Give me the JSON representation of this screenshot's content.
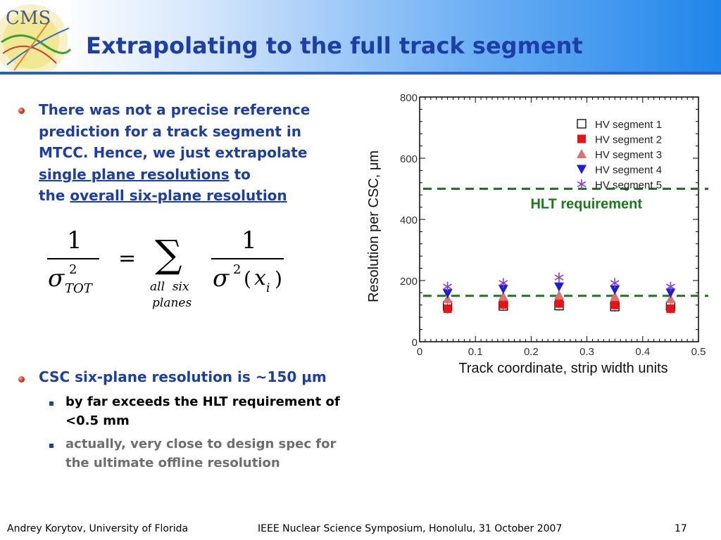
{
  "slide": {
    "title": "Extrapolating to the full track segment",
    "logo_text": "CMS",
    "bullet1": {
      "line1": "There was not a precise reference",
      "line2": "prediction for a track segment in",
      "line3": "MTCC. Hence, we just extrapolate",
      "link1": "single plane resolutions",
      "to": " to",
      "the": "the ",
      "link2": "overall six-plane resolution"
    },
    "formula": {
      "one": "1",
      "sigma": "σ",
      "squared": "2",
      "tot": "TOT",
      "equals": "=",
      "sum": "∑",
      "all_six": "all  six",
      "planes": "planes",
      "paren_open": "(",
      "x": "x",
      "i": "i",
      "paren_close": ")"
    },
    "bullet2": "CSC six-plane resolution is ~150 μm",
    "sub1": {
      "line1": "by far exceeds the HLT requirement of",
      "line2": "<0.5 mm"
    },
    "sub2": {
      "line1": "actually, very close to design spec for",
      "line2": "the ultimate offline resolution"
    },
    "footer": {
      "author": "Andrey Korytov, University of Florida",
      "event": "IEEE Nuclear Science Symposium, Honolulu, 31 October 2007",
      "page": "17"
    }
  },
  "colors": {
    "accent": "#1b3ea8",
    "bullet": "#d9401c",
    "hlt": "#187a18",
    "sub2_text": "#6e6e6e"
  },
  "chart_data": {
    "type": "scatter",
    "xlabel": "Track coordinate, strip width units",
    "ylabel": "Resolution per CSC, μm",
    "xlim": [
      0,
      0.5
    ],
    "ylim": [
      0,
      800
    ],
    "x_ticks": [
      "0",
      "0.1",
      "0.2",
      "0.3",
      "0.4",
      "0.5"
    ],
    "y_ticks": [
      "0",
      "200",
      "400",
      "600",
      "800"
    ],
    "x": [
      0.05,
      0.15,
      0.25,
      0.35,
      0.45
    ],
    "series": [
      {
        "name": "HV segment 1",
        "marker": "open-square",
        "color": "#000000",
        "values": [
          117,
          117,
          118,
          115,
          116
        ]
      },
      {
        "name": "HV segment 2",
        "marker": "filled-square",
        "color": "#ee1111",
        "values": [
          108,
          122,
          125,
          120,
          108
        ]
      },
      {
        "name": "HV segment 3",
        "marker": "triangle-up",
        "color": "#e07070",
        "values": [
          140,
          148,
          152,
          148,
          140
        ]
      },
      {
        "name": "HV segment 4",
        "marker": "triangle-down",
        "color": "#1a1ae0",
        "values": [
          158,
          172,
          180,
          170,
          160
        ]
      },
      {
        "name": "HV segment 5",
        "marker": "asterisk",
        "color": "#8a3ad8",
        "values": [
          180,
          192,
          210,
          192,
          180
        ]
      }
    ],
    "reference_lines": [
      {
        "label": "HLT requirement",
        "y": 500,
        "style": "dashed",
        "color": "#187a18"
      },
      {
        "label": "",
        "y": 150,
        "style": "dashed",
        "color": "#187a18"
      }
    ],
    "legend_position": "top-right",
    "grid": false
  }
}
